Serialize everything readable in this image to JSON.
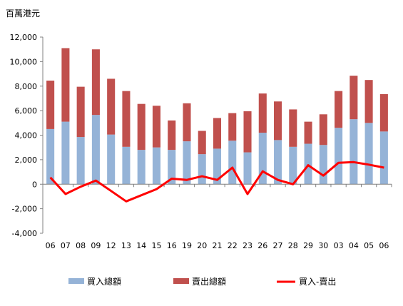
{
  "chart_data": {
    "type": "bar",
    "stacked": true,
    "unit_label": "百萬港元",
    "categories": [
      "06",
      "07",
      "08",
      "09",
      "12",
      "13",
      "14",
      "15",
      "16",
      "19",
      "20",
      "21",
      "22",
      "23",
      "26",
      "27",
      "28",
      "29",
      "30",
      "03",
      "04",
      "05",
      "06"
    ],
    "ylim": [
      -4000,
      12000
    ],
    "yticks": [
      -4000,
      -2000,
      0,
      2000,
      4000,
      6000,
      8000,
      10000,
      12000
    ],
    "ytick_labels": [
      "-4,000",
      "-2,000",
      "0",
      "2,000",
      "4,000",
      "6,000",
      "8,000",
      "10,000",
      "12,000"
    ],
    "grid": false,
    "legend_position": "bottom",
    "colors": {
      "buy": "#95b3d7",
      "sell": "#c0504d",
      "net": "#ff0000",
      "axis": "#808080"
    },
    "series": [
      {
        "name": "買入總額",
        "kind": "bar",
        "values": [
          4500,
          5100,
          3850,
          5650,
          4050,
          3050,
          2800,
          3000,
          2800,
          3500,
          2450,
          2900,
          3550,
          2600,
          4200,
          3600,
          3050,
          3300,
          3200,
          4600,
          5300,
          5000,
          4300
        ]
      },
      {
        "name": "賣出總額",
        "kind": "bar",
        "values": [
          3950,
          6000,
          4100,
          5350,
          4550,
          4550,
          3750,
          3400,
          2400,
          3100,
          1900,
          2500,
          2250,
          3350,
          3200,
          3150,
          3050,
          1800,
          2500,
          3000,
          3550,
          3500,
          3050
        ]
      },
      {
        "name": "買入-賣出",
        "kind": "line",
        "values": [
          550,
          -800,
          -200,
          300,
          -550,
          -1400,
          -900,
          -400,
          450,
          350,
          650,
          350,
          1350,
          -800,
          1050,
          350,
          0,
          1550,
          700,
          1750,
          1800,
          1600,
          1350
        ]
      }
    ]
  }
}
